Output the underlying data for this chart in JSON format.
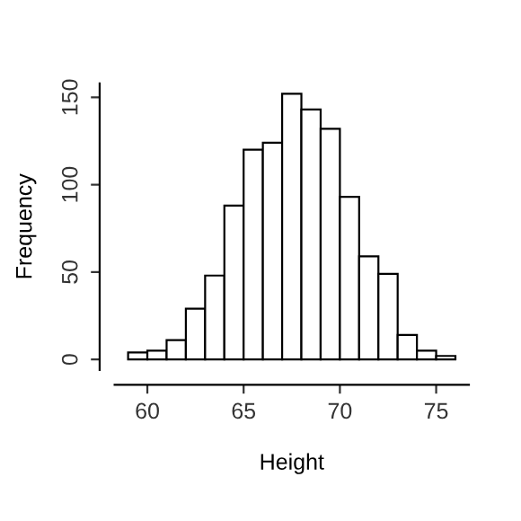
{
  "chart_data": {
    "type": "histogram",
    "xlabel": "Height",
    "ylabel": "Frequency",
    "bins": [
      59,
      60,
      61,
      62,
      63,
      64,
      65,
      66,
      67,
      68,
      69,
      70,
      71,
      72,
      73,
      74,
      75,
      76
    ],
    "values": [
      4,
      5,
      11,
      29,
      48,
      88,
      120,
      124,
      152,
      143,
      132,
      93,
      59,
      49,
      14,
      5,
      2
    ],
    "color": "#ffffff",
    "xlim": [
      58.3,
      76.7
    ],
    "ylim": [
      -6,
      158
    ],
    "xticks": [
      60,
      65,
      70,
      75
    ],
    "yticks": [
      0,
      50,
      100,
      150
    ],
    "grid": false
  }
}
